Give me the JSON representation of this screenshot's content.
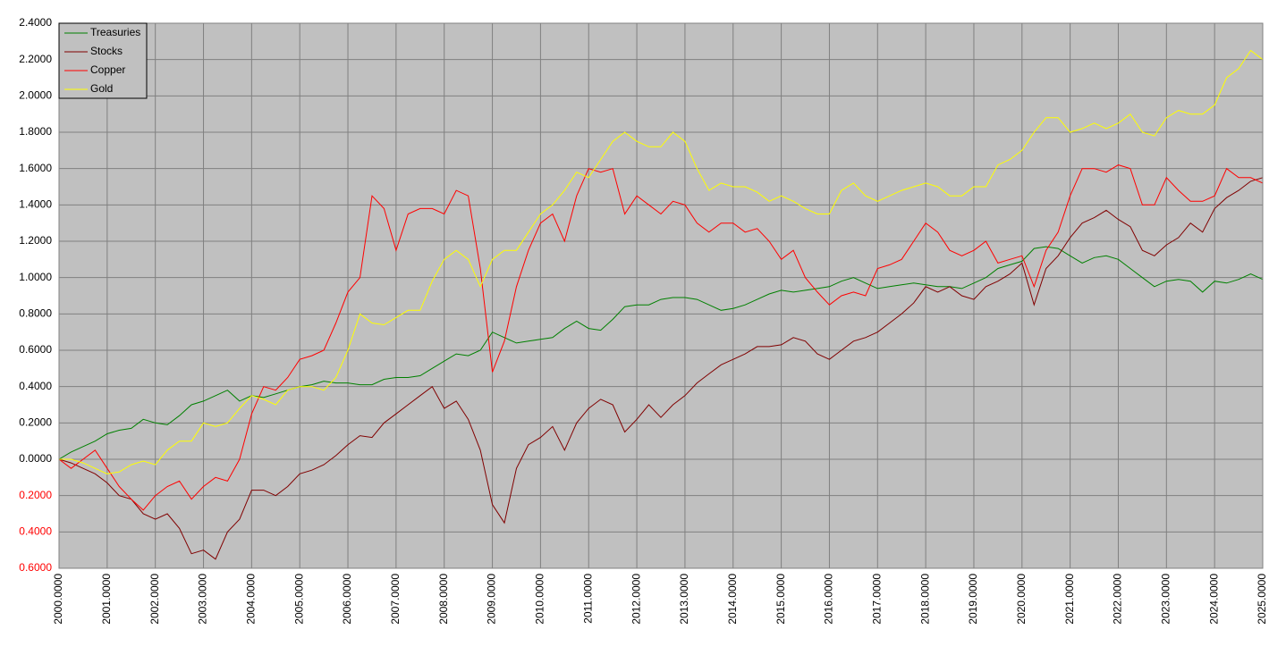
{
  "chart_data": {
    "type": "line",
    "x": [
      2000,
      2000.25,
      2000.5,
      2000.75,
      2001,
      2001.25,
      2001.5,
      2001.75,
      2002,
      2002.25,
      2002.5,
      2002.75,
      2003,
      2003.25,
      2003.5,
      2003.75,
      2004,
      2004.25,
      2004.5,
      2004.75,
      2005,
      2005.25,
      2005.5,
      2005.75,
      2006,
      2006.25,
      2006.5,
      2006.75,
      2007,
      2007.25,
      2007.5,
      2007.75,
      2008,
      2008.25,
      2008.5,
      2008.75,
      2009,
      2009.25,
      2009.5,
      2009.75,
      2010,
      2010.25,
      2010.5,
      2010.75,
      2011,
      2011.25,
      2011.5,
      2011.75,
      2012,
      2012.25,
      2012.5,
      2012.75,
      2013,
      2013.25,
      2013.5,
      2013.75,
      2014,
      2014.25,
      2014.5,
      2014.75,
      2015,
      2015.25,
      2015.5,
      2015.75,
      2016,
      2016.25,
      2016.5,
      2016.75,
      2017,
      2017.25,
      2017.5,
      2017.75,
      2018,
      2018.25,
      2018.5,
      2018.75,
      2019,
      2019.25,
      2019.5,
      2019.75,
      2020,
      2020.25,
      2020.5,
      2020.75,
      2021,
      2021.25,
      2021.5,
      2021.75,
      2022,
      2022.25,
      2022.5,
      2022.75,
      2023,
      2023.25,
      2023.5,
      2023.75,
      2024,
      2024.25,
      2024.5,
      2024.75,
      2025
    ],
    "series": [
      {
        "name": "Treasuries",
        "color": "#008000",
        "values": [
          0,
          0.04,
          0.07,
          0.1,
          0.14,
          0.16,
          0.17,
          0.22,
          0.2,
          0.19,
          0.24,
          0.3,
          0.32,
          0.35,
          0.38,
          0.32,
          0.35,
          0.34,
          0.36,
          0.38,
          0.4,
          0.41,
          0.43,
          0.42,
          0.42,
          0.41,
          0.41,
          0.44,
          0.45,
          0.45,
          0.46,
          0.5,
          0.54,
          0.58,
          0.57,
          0.6,
          0.7,
          0.67,
          0.64,
          0.65,
          0.66,
          0.67,
          0.72,
          0.76,
          0.72,
          0.71,
          0.77,
          0.84,
          0.85,
          0.85,
          0.88,
          0.89,
          0.89,
          0.88,
          0.85,
          0.82,
          0.83,
          0.85,
          0.88,
          0.91,
          0.93,
          0.92,
          0.93,
          0.94,
          0.95,
          0.98,
          1.0,
          0.97,
          0.94,
          0.95,
          0.96,
          0.97,
          0.96,
          0.95,
          0.95,
          0.94,
          0.97,
          1.0,
          1.05,
          1.07,
          1.09,
          1.16,
          1.17,
          1.16,
          1.12,
          1.08,
          1.11,
          1.12,
          1.1,
          1.05,
          1.0,
          0.95,
          0.98,
          0.99,
          0.98,
          0.92,
          0.98,
          0.97,
          0.99,
          1.02,
          0.99
        ]
      },
      {
        "name": "Stocks",
        "color": "#800000",
        "values": [
          0,
          -0.02,
          -0.05,
          -0.08,
          -0.13,
          -0.2,
          -0.22,
          -0.3,
          -0.33,
          -0.3,
          -0.38,
          -0.52,
          -0.5,
          -0.55,
          -0.4,
          -0.33,
          -0.17,
          -0.17,
          -0.2,
          -0.15,
          -0.08,
          -0.06,
          -0.03,
          0.02,
          0.08,
          0.13,
          0.12,
          0.2,
          0.25,
          0.3,
          0.35,
          0.4,
          0.28,
          0.32,
          0.22,
          0.05,
          -0.25,
          -0.35,
          -0.05,
          0.08,
          0.12,
          0.18,
          0.05,
          0.2,
          0.28,
          0.33,
          0.3,
          0.15,
          0.22,
          0.3,
          0.23,
          0.3,
          0.35,
          0.42,
          0.47,
          0.52,
          0.55,
          0.58,
          0.62,
          0.62,
          0.63,
          0.67,
          0.65,
          0.58,
          0.55,
          0.6,
          0.65,
          0.67,
          0.7,
          0.75,
          0.8,
          0.86,
          0.95,
          0.92,
          0.95,
          0.9,
          0.88,
          0.95,
          0.98,
          1.02,
          1.08,
          0.85,
          1.05,
          1.12,
          1.22,
          1.3,
          1.33,
          1.37,
          1.32,
          1.28,
          1.15,
          1.12,
          1.18,
          1.22,
          1.3,
          1.25,
          1.38,
          1.44,
          1.48,
          1.53,
          1.55
        ]
      },
      {
        "name": "Copper",
        "color": "#ff0000",
        "values": [
          0,
          -0.05,
          0,
          0.05,
          -0.05,
          -0.15,
          -0.22,
          -0.28,
          -0.2,
          -0.15,
          -0.12,
          -0.22,
          -0.15,
          -0.1,
          -0.12,
          0,
          0.25,
          0.4,
          0.38,
          0.45,
          0.55,
          0.57,
          0.6,
          0.75,
          0.92,
          1.0,
          1.45,
          1.38,
          1.15,
          1.35,
          1.38,
          1.38,
          1.35,
          1.48,
          1.45,
          1.05,
          0.48,
          0.65,
          0.95,
          1.15,
          1.3,
          1.35,
          1.2,
          1.45,
          1.6,
          1.58,
          1.6,
          1.35,
          1.45,
          1.4,
          1.35,
          1.42,
          1.4,
          1.3,
          1.25,
          1.3,
          1.3,
          1.25,
          1.27,
          1.2,
          1.1,
          1.15,
          1.0,
          0.92,
          0.85,
          0.9,
          0.92,
          0.9,
          1.05,
          1.07,
          1.1,
          1.2,
          1.3,
          1.25,
          1.15,
          1.12,
          1.15,
          1.2,
          1.08,
          1.1,
          1.12,
          0.95,
          1.15,
          1.25,
          1.45,
          1.6,
          1.6,
          1.58,
          1.62,
          1.6,
          1.4,
          1.4,
          1.55,
          1.48,
          1.42,
          1.42,
          1.45,
          1.6,
          1.55,
          1.55,
          1.52
        ]
      },
      {
        "name": "Gold",
        "color": "#ffff00",
        "values": [
          0,
          0,
          -0.02,
          -0.05,
          -0.08,
          -0.07,
          -0.03,
          -0.01,
          -0.03,
          0.05,
          0.1,
          0.1,
          0.2,
          0.18,
          0.2,
          0.28,
          0.35,
          0.33,
          0.3,
          0.38,
          0.4,
          0.4,
          0.38,
          0.45,
          0.6,
          0.8,
          0.75,
          0.74,
          0.78,
          0.82,
          0.82,
          0.98,
          1.1,
          1.15,
          1.1,
          0.95,
          1.1,
          1.15,
          1.15,
          1.25,
          1.35,
          1.4,
          1.48,
          1.58,
          1.55,
          1.65,
          1.75,
          1.8,
          1.75,
          1.72,
          1.72,
          1.8,
          1.75,
          1.6,
          1.48,
          1.52,
          1.5,
          1.5,
          1.47,
          1.42,
          1.45,
          1.42,
          1.38,
          1.35,
          1.35,
          1.48,
          1.52,
          1.45,
          1.42,
          1.45,
          1.48,
          1.5,
          1.52,
          1.5,
          1.45,
          1.45,
          1.5,
          1.5,
          1.62,
          1.65,
          1.7,
          1.8,
          1.88,
          1.88,
          1.8,
          1.82,
          1.85,
          1.82,
          1.85,
          1.9,
          1.8,
          1.78,
          1.88,
          1.92,
          1.9,
          1.9,
          1.95,
          2.1,
          2.15,
          2.25,
          2.2
        ]
      }
    ],
    "xlim": [
      2000,
      2025
    ],
    "xticks": [
      {
        "value": 2000,
        "label": "2000.0000"
      },
      {
        "value": 2001,
        "label": "2001.0000"
      },
      {
        "value": 2002,
        "label": "2002.0000"
      },
      {
        "value": 2003,
        "label": "2003.0000"
      },
      {
        "value": 2004,
        "label": "2004.0000"
      },
      {
        "value": 2005,
        "label": "2005.0000"
      },
      {
        "value": 2006,
        "label": "2006.0000"
      },
      {
        "value": 2007,
        "label": "2007.0000"
      },
      {
        "value": 2008,
        "label": "2008.0000"
      },
      {
        "value": 2009,
        "label": "2009.0000"
      },
      {
        "value": 2010,
        "label": "2010.0000"
      },
      {
        "value": 2011,
        "label": "2011.0000"
      },
      {
        "value": 2012,
        "label": "2012.0000"
      },
      {
        "value": 2013,
        "label": "2013.0000"
      },
      {
        "value": 2014,
        "label": "2014.0000"
      },
      {
        "value": 2015,
        "label": "2015.0000"
      },
      {
        "value": 2016,
        "label": "2016.0000"
      },
      {
        "value": 2017,
        "label": "2017.0000"
      },
      {
        "value": 2018,
        "label": "2018.0000"
      },
      {
        "value": 2019,
        "label": "2019.0000"
      },
      {
        "value": 2020,
        "label": "2020.0000"
      },
      {
        "value": 2021,
        "label": "2021.0000"
      },
      {
        "value": 2022,
        "label": "2022.0000"
      },
      {
        "value": 2023,
        "label": "2023.0000"
      },
      {
        "value": 2024,
        "label": "2024.0000"
      },
      {
        "value": 2025,
        "label": "2025.0000"
      }
    ],
    "ylim": [
      -0.6,
      2.4
    ],
    "yticks": [
      {
        "value": 2.4,
        "label": "2.4000"
      },
      {
        "value": 2.2,
        "label": "2.2000"
      },
      {
        "value": 2.0,
        "label": "2.0000"
      },
      {
        "value": 1.8,
        "label": "1.8000"
      },
      {
        "value": 1.6,
        "label": "1.6000"
      },
      {
        "value": 1.4,
        "label": "1.4000"
      },
      {
        "value": 1.2,
        "label": "1.2000"
      },
      {
        "value": 1.0,
        "label": "1.0000"
      },
      {
        "value": 0.8,
        "label": "0.8000"
      },
      {
        "value": 0.6,
        "label": "0.6000"
      },
      {
        "value": 0.4,
        "label": "0.4000"
      },
      {
        "value": 0.2,
        "label": "0.2000"
      },
      {
        "value": 0,
        "label": "0.0000"
      },
      {
        "value": -0.2,
        "label": "0.2000"
      },
      {
        "value": -0.4,
        "label": "0.4000"
      },
      {
        "value": -0.6,
        "label": "0.6000"
      }
    ],
    "negative_tick_color": "#ff0000",
    "grid": true,
    "legend": "top-left",
    "plot_background": "#c0c0c0"
  }
}
